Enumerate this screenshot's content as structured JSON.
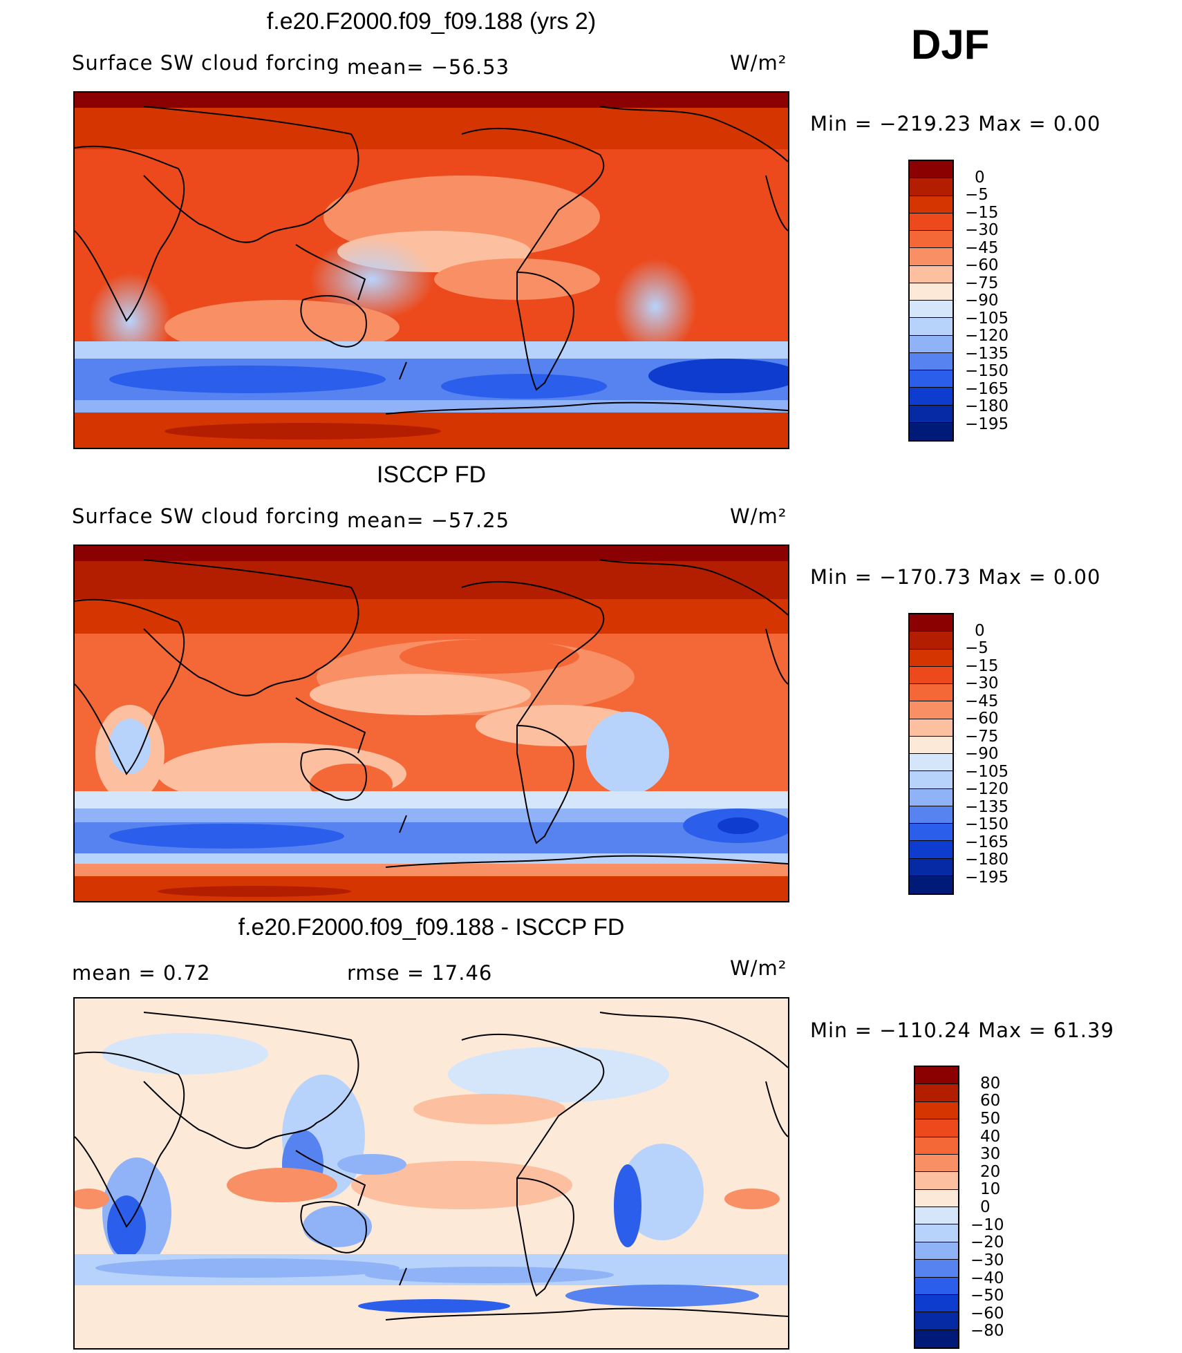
{
  "season": "DJF",
  "panels": [
    {
      "title": "f.e20.F2000.f09_f09.188 (yrs 2)",
      "variable": "Surface SW cloud forcing",
      "mean_text": "mean= −56.53",
      "units": "W/m²",
      "minmax_text": "Min  =  −219.23  Max  =      0.00",
      "colorbar_labels": [
        "0",
        "−5",
        "−15",
        "−30",
        "−45",
        "−60",
        "−75",
        "−90",
        "−105",
        "−120",
        "−135",
        "−150",
        "−165",
        "−180",
        "−195"
      ]
    },
    {
      "title": "ISCCP FD",
      "variable": "Surface SW cloud forcing",
      "mean_text": "mean= −57.25",
      "units": "W/m²",
      "minmax_text": "Min  =  −170.73  Max  =      0.00",
      "colorbar_labels": [
        "0",
        "−5",
        "−15",
        "−30",
        "−45",
        "−60",
        "−75",
        "−90",
        "−105",
        "−120",
        "−135",
        "−150",
        "−165",
        "−180",
        "−195"
      ]
    },
    {
      "title": "f.e20.F2000.f09_f09.188 - ISCCP FD",
      "mean_text": "mean  =     0.72",
      "rmse_text": "rmse  =    17.46",
      "units": "W/m²",
      "minmax_text": "Min  =  −110.24  Max  =    61.39",
      "colorbar_labels": [
        "80",
        "60",
        "50",
        "40",
        "30",
        "20",
        "10",
        "0",
        "−10",
        "−20",
        "−30",
        "−40",
        "−50",
        "−60",
        "−80"
      ]
    }
  ],
  "colors": {
    "abs_scale": [
      "#8b0000",
      "#b41e00",
      "#d53500",
      "#ec4a1c",
      "#f46838",
      "#f98f64",
      "#fcbfa0",
      "#fde9d8",
      "#d5e6fb",
      "#b8d3fb",
      "#8fb3f6",
      "#5683f0",
      "#2a5eeb",
      "#0d3ccf",
      "#062aa3",
      "#001a78"
    ],
    "diff_scale": [
      "#8b0000",
      "#b41e00",
      "#d53500",
      "#ec4a1c",
      "#f46838",
      "#f98f64",
      "#fcbfa0",
      "#fde9d8",
      "#d5e6fb",
      "#b8d3fb",
      "#8fb3f6",
      "#5683f0",
      "#2a5eeb",
      "#0d3ccf",
      "#062aa3",
      "#001a78"
    ]
  }
}
